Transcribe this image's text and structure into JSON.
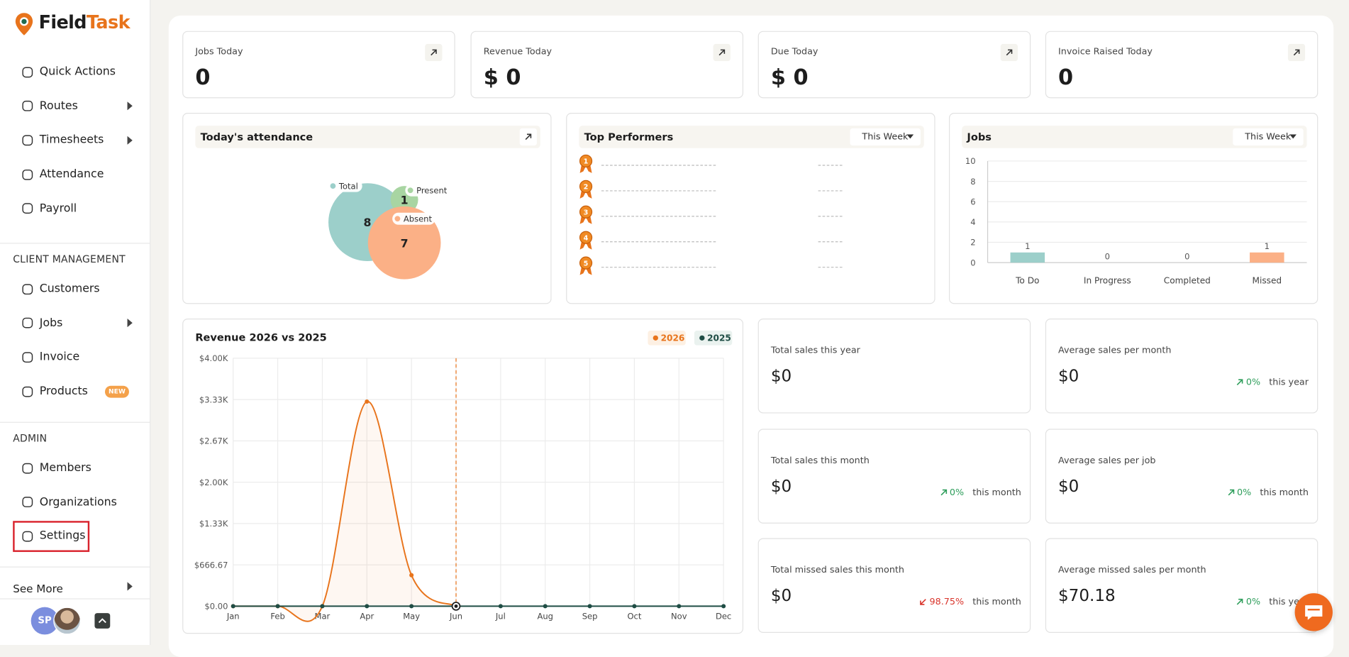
{
  "sidebar": {
    "brand_primary": "Field",
    "brand_accent": "Task",
    "groups": [
      {
        "items": [
          {
            "label": "Quick Actions"
          },
          {
            "label": "Routes",
            "expandable": true
          },
          {
            "label": "Timesheets",
            "expandable": true
          },
          {
            "label": "Attendance"
          },
          {
            "label": "Payroll"
          }
        ]
      },
      {
        "heading": "CLIENT MANAGEMENT",
        "items": [
          {
            "label": "Customers"
          },
          {
            "label": "Jobs",
            "expandable": true
          },
          {
            "label": "Invoice"
          },
          {
            "label": "Products",
            "badge": "NEW"
          }
        ]
      },
      {
        "heading": "ADMIN",
        "items": [
          {
            "label": "Members"
          },
          {
            "label": "Organizations"
          },
          {
            "label": "Settings",
            "highlighted": true
          }
        ]
      }
    ],
    "see_more": "See More",
    "user_initials": "SP"
  },
  "stat_cards": [
    {
      "label": "Jobs Today",
      "value": "0"
    },
    {
      "label": "Revenue Today",
      "value": "$ 0"
    },
    {
      "label": "Due Today",
      "value": "$ 0"
    },
    {
      "label": "Invoice Raised Today",
      "value": "0"
    }
  ],
  "top_performers": {
    "title": "Top Performers",
    "period": "This Week",
    "ranks": [
      1,
      2,
      3,
      4,
      5
    ]
  },
  "chart_data": [
    {
      "type": "bubble",
      "title": "Today's attendance",
      "categories": [
        "Total",
        "Present",
        "Absent"
      ],
      "values": [
        8,
        1,
        7
      ],
      "colors": [
        "#9ccfca",
        "#a8d5a2",
        "#fbb086"
      ]
    },
    {
      "type": "bar",
      "title": "Jobs",
      "period": "This Week",
      "categories": [
        "To Do",
        "In Progress",
        "Completed",
        "Missed"
      ],
      "values": [
        1,
        0,
        0,
        1
      ],
      "colors": [
        "#9ccfca",
        "#a8d5a2",
        "#c9c9c9",
        "#fbb086"
      ],
      "ylim": [
        0,
        10
      ],
      "yticks": [
        0,
        2,
        4,
        6,
        8,
        10
      ],
      "grid": true
    },
    {
      "type": "line",
      "title": "Revenue 2026 vs 2025",
      "categories": [
        "Jan",
        "Feb",
        "Mar",
        "Apr",
        "May",
        "Jun",
        "Jul",
        "Aug",
        "Sep",
        "Oct",
        "Nov",
        "Dec"
      ],
      "series": [
        {
          "name": "2026",
          "color": "#e8741c",
          "values": [
            0,
            0,
            0,
            3300,
            500,
            0,
            null,
            null,
            null,
            null,
            null,
            null
          ]
        },
        {
          "name": "2025",
          "color": "#1f4d45",
          "values": [
            0,
            0,
            0,
            0,
            0,
            0,
            0,
            0,
            0,
            0,
            0,
            0
          ]
        }
      ],
      "ylim": [
        0,
        4000
      ],
      "yticks": [
        {
          "value": 0,
          "label": "$0.00"
        },
        {
          "value": 666.67,
          "label": "$666.67"
        },
        {
          "value": 1333.33,
          "label": "$1.33K"
        },
        {
          "value": 2000,
          "label": "$2.00K"
        },
        {
          "value": 2666.67,
          "label": "$2.67K"
        },
        {
          "value": 3333.33,
          "label": "$3.33K"
        },
        {
          "value": 4000,
          "label": "$4.00K"
        }
      ],
      "grid": true,
      "current_month": "Jun"
    }
  ],
  "sales_cards": [
    {
      "label": "Total sales this year",
      "value": "$0"
    },
    {
      "label": "Average sales per month",
      "value": "$0",
      "change": "0%",
      "change_label": "this year",
      "trend": "up"
    },
    {
      "label": "Total sales this month",
      "value": "$0",
      "change": "0%",
      "change_label": "this month",
      "trend": "up"
    },
    {
      "label": "Average sales per job",
      "value": "$0",
      "change": "0%",
      "change_label": "this month",
      "trend": "up"
    },
    {
      "label": "Total missed sales this month",
      "value": "$0",
      "change": "98.75%",
      "change_label": "this month",
      "trend": "down"
    },
    {
      "label": "Average missed sales per month",
      "value": "$70.18",
      "change": "0%",
      "change_label": "this year",
      "trend": "up"
    }
  ]
}
